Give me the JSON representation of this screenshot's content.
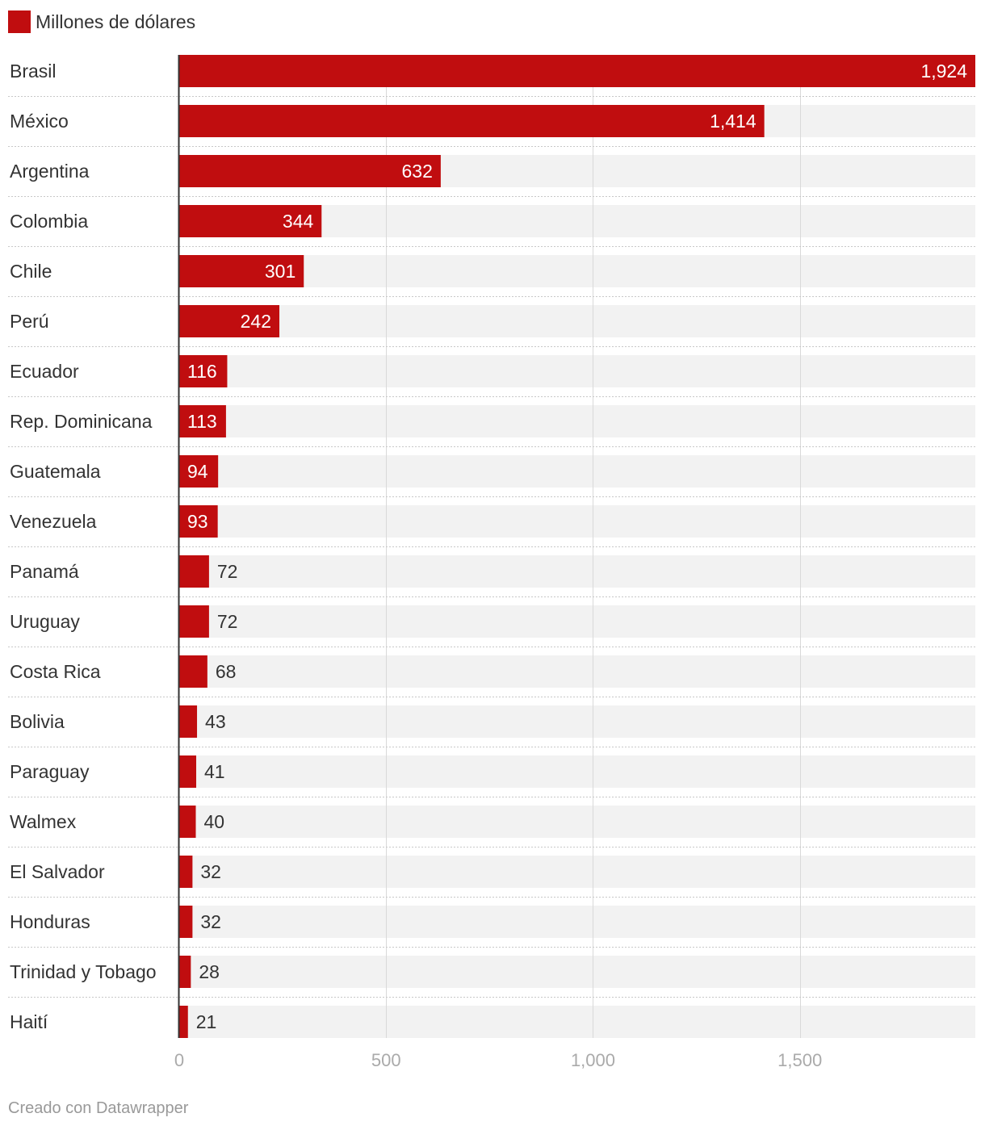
{
  "chart_data": {
    "type": "bar",
    "orientation": "horizontal",
    "legend": [
      {
        "label": "Millones de dólares",
        "color": "#c00d0f"
      }
    ],
    "categories": [
      "Brasil",
      "México",
      "Argentina",
      "Colombia",
      "Chile",
      "Perú",
      "Ecuador",
      "Rep. Dominicana",
      "Guatemala",
      "Venezuela",
      "Panamá",
      "Uruguay",
      "Costa Rica",
      "Bolivia",
      "Paraguay",
      "Walmex",
      "El Salvador",
      "Honduras",
      "Trinidad y Tobago",
      "Haití"
    ],
    "values": [
      1924,
      1414,
      632,
      344,
      301,
      242,
      116,
      113,
      94,
      93,
      72,
      72,
      68,
      43,
      41,
      40,
      32,
      32,
      28,
      21
    ],
    "value_labels": [
      "1,924",
      "1,414",
      "632",
      "344",
      "301",
      "242",
      "116",
      "113",
      "94",
      "93",
      "72",
      "72",
      "68",
      "43",
      "41",
      "40",
      "32",
      "32",
      "28",
      "21"
    ],
    "xlim": [
      0,
      1924
    ],
    "ticks": [
      0,
      500,
      1000,
      1500
    ],
    "tick_labels": [
      "0",
      "500",
      "1,000",
      "1,500"
    ],
    "grid": true,
    "bar_color": "#c00d0f",
    "track_color": "#f2f2f2"
  },
  "footer": {
    "credit": "Creado con Datawrapper"
  }
}
